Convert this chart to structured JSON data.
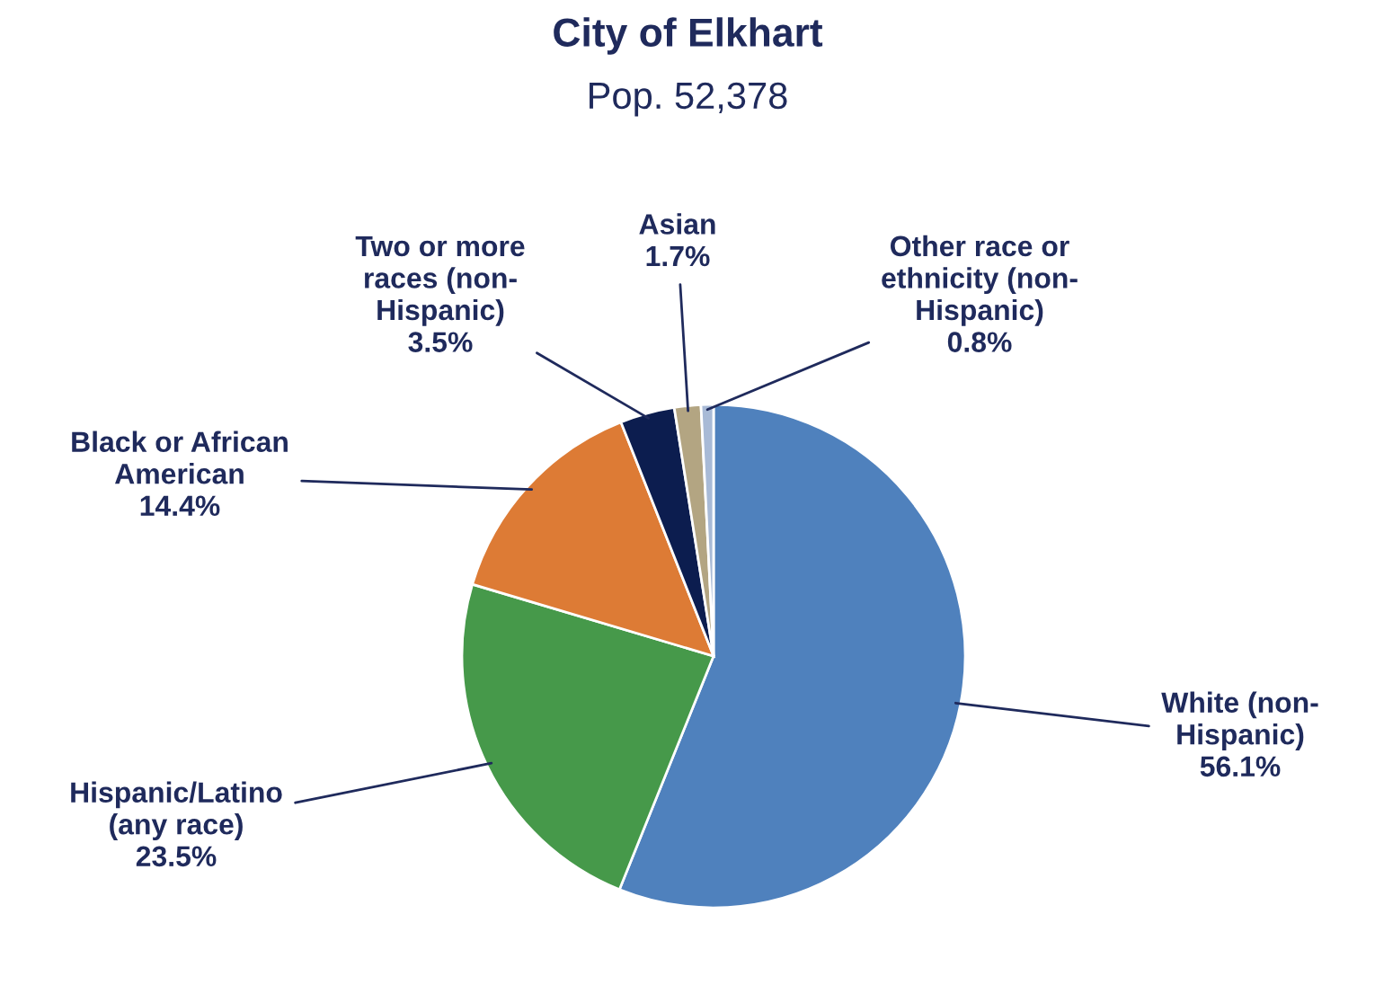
{
  "chart_data": {
    "type": "pie",
    "title": "City of Elkhart",
    "subtitle": "Pop. 52,378",
    "categories": [
      "White (non-\nHispanic)",
      "Hispanic/Latino\n(any race)",
      "Black or African\nAmerican",
      "Two or more\nraces (non-\nHispanic)",
      "Asian",
      "Other race or\nethnicity (non-\nHispanic)"
    ],
    "values": [
      56.1,
      23.5,
      14.4,
      3.5,
      1.7,
      0.8
    ],
    "value_labels": [
      "56.1%",
      "23.5%",
      "14.4%",
      "3.5%",
      "1.7%",
      "0.8%"
    ],
    "colors": [
      "#4f81bd",
      "#46994a",
      "#dd7b35",
      "#0c1d4f",
      "#b3a582",
      "#a8bad6"
    ],
    "legend": false
  }
}
